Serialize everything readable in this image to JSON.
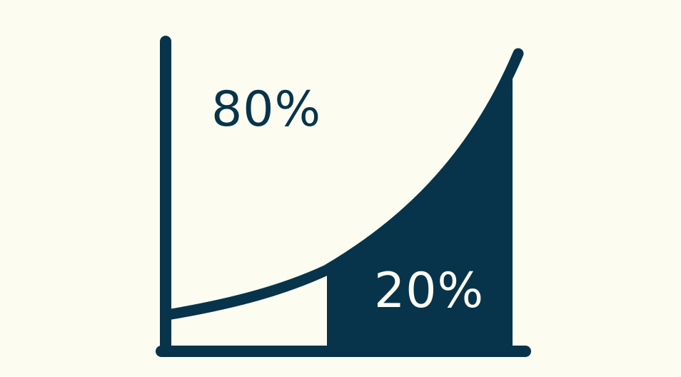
{
  "diagram": {
    "type": "pareto-80-20-curve",
    "top_label": "80%",
    "bottom_label": "20%",
    "colors": {
      "background": "#fcfcf0",
      "primary": "#07344b",
      "label_light": "#fcfcf0"
    }
  }
}
